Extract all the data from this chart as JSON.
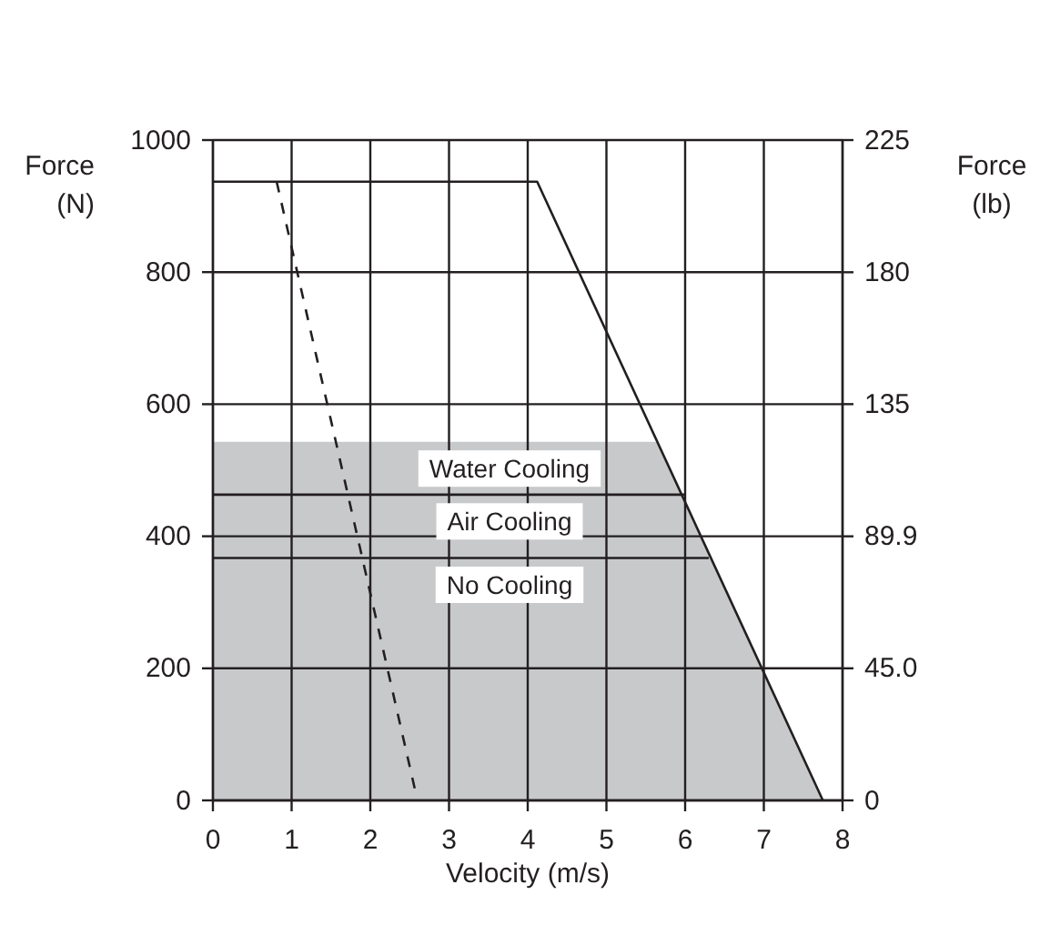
{
  "chart_data": {
    "type": "line",
    "xlabel": "Velocity (m/s)",
    "ylabel": "Force (N)",
    "y2label": "Force (lb)",
    "xlim": [
      0,
      8
    ],
    "xticks": [
      0,
      1,
      2,
      3,
      4,
      5,
      6,
      7,
      8
    ],
    "ylim": [
      0,
      1000
    ],
    "yticks": [
      0,
      200,
      400,
      600,
      800,
      1000
    ],
    "y2lim": [
      0,
      224.8
    ],
    "y2ticks": [
      0,
      {
        "value": 44.96,
        "label": "45.0"
      },
      {
        "value": 89.9,
        "label": "89.9"
      },
      {
        "value": 134.9,
        "label": "135"
      },
      {
        "value": 179.8,
        "label": "180"
      },
      {
        "value": 224.8,
        "label": "225"
      }
    ],
    "grid": true,
    "marker": "none",
    "series": [
      {
        "type": "area",
        "name": "Water Cooling",
        "color": "#c8c9cb",
        "x": [
          0,
          5.64,
          7.75
        ],
        "values": [
          543,
          543,
          0
        ]
      },
      {
        "name": "Air Cooling",
        "color": "#231f20",
        "x": [
          0,
          6.0
        ],
        "values": [
          463,
          463
        ]
      },
      {
        "name": "No Cooling",
        "color": "#231f20",
        "x": [
          0,
          6.3
        ],
        "values": [
          367,
          367
        ]
      },
      {
        "color": "#231f20",
        "x": [
          0,
          4.12,
          7.75
        ],
        "values": [
          937,
          937,
          0
        ]
      },
      {
        "color": "#231f20",
        "line_style": "dashed",
        "x": [
          0.81,
          2.57
        ],
        "values": [
          937,
          15
        ]
      }
    ]
  }
}
